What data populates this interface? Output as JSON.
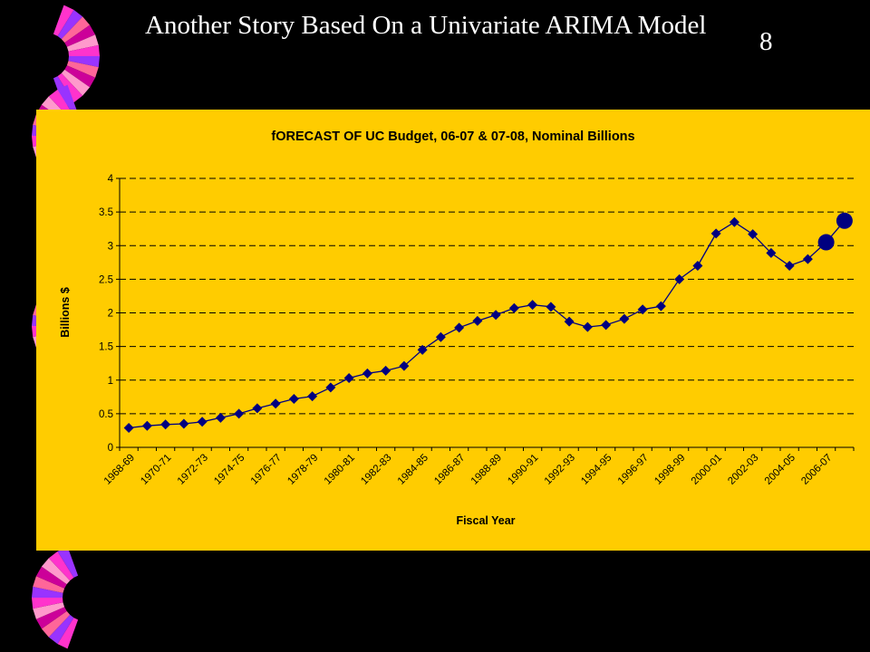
{
  "slide": {
    "title": "Another Story Based On a Univariate ARIMA Model",
    "number": "8"
  },
  "colors": {
    "background": "#000000",
    "panel": "#ffcc00",
    "series": "#000080",
    "decor": [
      "#ff33cc",
      "#9933ff",
      "#ff6699",
      "#cc0099",
      "#ff99cc"
    ]
  },
  "chart_data": {
    "type": "line",
    "title": "fORECAST OF UC Budget, 06-07 & 07-08, Nominal Billions",
    "xlabel": "Fiscal Year",
    "ylabel": "Billions $",
    "ylim": [
      0,
      4
    ],
    "yticks": [
      "0",
      "0.5",
      "1",
      "1.5",
      "2",
      "2.5",
      "3",
      "3.5",
      "4"
    ],
    "grid": "horizontal dashed",
    "legend": "none",
    "categories": [
      "1968-69",
      "1969-70",
      "1970-71",
      "1971-72",
      "1972-73",
      "1973-74",
      "1974-75",
      "1975-76",
      "1976-77",
      "1977-78",
      "1978-79",
      "1979-80",
      "1980-81",
      "1981-82",
      "1982-83",
      "1983-84",
      "1984-85",
      "1985-86",
      "1986-87",
      "1987-88",
      "1988-89",
      "1989-90",
      "1990-91",
      "1991-92",
      "1992-93",
      "1993-94",
      "1994-95",
      "1995-96",
      "1996-97",
      "1997-98",
      "1998-99",
      "1999-00",
      "2000-01",
      "2001-02",
      "2002-03",
      "2003-04",
      "2004-05",
      "2005-06",
      "2006-07",
      "2007-08"
    ],
    "category_labels": [
      "1968-69",
      "",
      "1970-71",
      "",
      "1972-73",
      "",
      "1974-75",
      "",
      "1976-77",
      "",
      "1978-79",
      "",
      "1980-81",
      "",
      "1982-83",
      "",
      "1984-85",
      "",
      "1986-87",
      "",
      "1988-89",
      "",
      "1990-91",
      "",
      "1992-93",
      "",
      "1994-95",
      "",
      "1996-97",
      "",
      "1998-99",
      "",
      "2000-01",
      "",
      "2002-03",
      "",
      "2004-05",
      "",
      "2006-07",
      ""
    ],
    "series": [
      {
        "values": [
          0.29,
          0.32,
          0.34,
          0.35,
          0.38,
          0.44,
          0.5,
          0.58,
          0.65,
          0.72,
          0.76,
          0.89,
          1.03,
          1.1,
          1.14,
          1.21,
          1.45,
          1.64,
          1.78,
          1.88,
          1.97,
          2.07,
          2.12,
          2.09,
          1.87,
          1.79,
          1.82,
          1.91,
          2.05,
          2.1,
          2.5,
          2.7,
          3.18,
          3.35,
          3.17,
          2.89,
          2.7,
          2.8,
          3.05,
          3.37
        ],
        "forecast_from_index": 38
      }
    ]
  }
}
